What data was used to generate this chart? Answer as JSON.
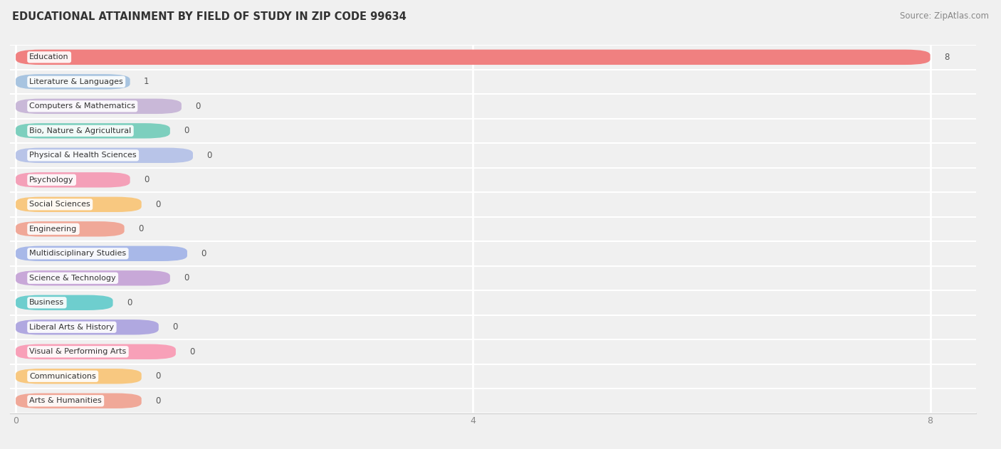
{
  "title": "EDUCATIONAL ATTAINMENT BY FIELD OF STUDY IN ZIP CODE 99634",
  "source": "Source: ZipAtlas.com",
  "categories": [
    "Education",
    "Literature & Languages",
    "Computers & Mathematics",
    "Bio, Nature & Agricultural",
    "Physical & Health Sciences",
    "Psychology",
    "Social Sciences",
    "Engineering",
    "Multidisciplinary Studies",
    "Science & Technology",
    "Business",
    "Liberal Arts & History",
    "Visual & Performing Arts",
    "Communications",
    "Arts & Humanities"
  ],
  "values": [
    8,
    1,
    0,
    0,
    0,
    0,
    0,
    0,
    0,
    0,
    0,
    0,
    0,
    0,
    0
  ],
  "bar_colors": [
    "#F08080",
    "#A8C4E0",
    "#C9B8D8",
    "#7DCFBE",
    "#B8C4E8",
    "#F4A0B8",
    "#F8C880",
    "#F0A898",
    "#A8B8E8",
    "#C8A8D8",
    "#6ECECE",
    "#B0A8E0",
    "#F8A0B8",
    "#F8C880",
    "#F0A898"
  ],
  "xlim": [
    0,
    8
  ],
  "xticks": [
    0,
    4,
    8
  ],
  "background_color": "#f0f0f0",
  "grid_color": "#ffffff",
  "title_fontsize": 10.5,
  "bar_height": 0.62,
  "zero_bar_width": 1.5
}
